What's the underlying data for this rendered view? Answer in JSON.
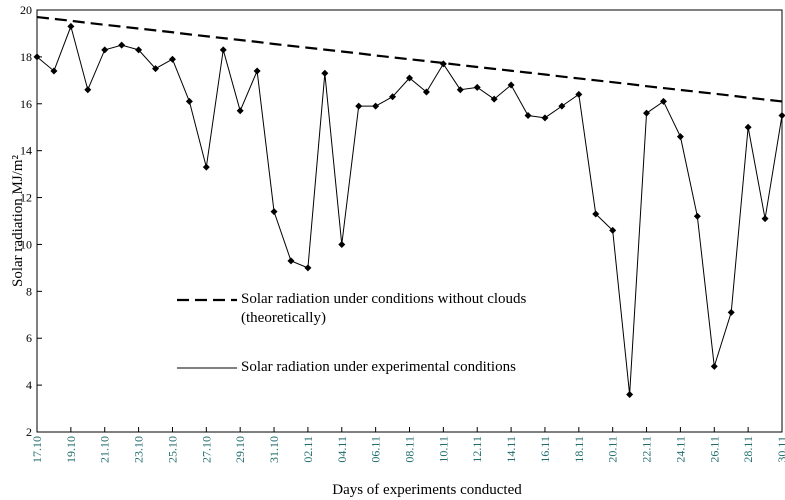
{
  "chart_data": {
    "type": "line",
    "x_label": "Days of experiments conducted",
    "y_label": "Solar radiation MJ/m²",
    "categories": [
      "17.10",
      null,
      "19.10",
      null,
      "21.10",
      null,
      "23.10",
      null,
      "25.10",
      null,
      "27.10",
      null,
      "29.10",
      null,
      "31.10",
      null,
      "02.11",
      null,
      "04.11",
      null,
      "06.11",
      null,
      "08.11",
      null,
      "10.11",
      null,
      "12.11",
      null,
      "14.11",
      null,
      "16.11",
      null,
      "18.11",
      null,
      "20.11",
      null,
      "22.11",
      null,
      "24.11",
      null,
      "26.11",
      null,
      "28.11",
      null,
      "30.11"
    ],
    "series": [
      {
        "name": "Solar radiation under conditions without clouds (theoretically)",
        "color": "#000000",
        "dashed": true,
        "marker": null,
        "values": [
          19.7,
          19.62,
          19.54,
          19.45,
          19.37,
          19.29,
          19.21,
          19.13,
          19.05,
          18.96,
          18.88,
          18.8,
          18.72,
          18.64,
          18.55,
          18.47,
          18.39,
          18.31,
          18.23,
          18.15,
          18.06,
          17.98,
          17.9,
          17.82,
          17.74,
          17.65,
          17.57,
          17.49,
          17.41,
          17.33,
          17.25,
          17.16,
          17.08,
          17.0,
          16.92,
          16.84,
          16.75,
          16.67,
          16.59,
          16.51,
          16.43,
          16.35,
          16.26,
          16.18,
          16.1
        ]
      },
      {
        "name": "Solar radiation under experimental conditions",
        "color": "#000000",
        "dashed": false,
        "marker": "diamond",
        "values": [
          18.0,
          17.4,
          19.3,
          16.6,
          18.3,
          18.5,
          18.3,
          17.5,
          17.9,
          16.1,
          13.3,
          18.3,
          15.7,
          17.4,
          11.4,
          9.3,
          9.0,
          17.3,
          10.0,
          15.9,
          15.9,
          16.3,
          17.1,
          16.5,
          17.7,
          16.6,
          16.7,
          16.2,
          16.8,
          15.5,
          15.4,
          15.9,
          16.4,
          11.3,
          10.6,
          3.6,
          15.6,
          16.1,
          14.6,
          11.2,
          4.8,
          7.1,
          15.0,
          11.1,
          15.5
        ]
      }
    ],
    "ylim": [
      2,
      20
    ],
    "yticks": [
      2,
      4,
      6,
      8,
      10,
      12,
      14,
      16,
      18,
      20
    ],
    "grid": false,
    "legend_position": "lower left"
  }
}
